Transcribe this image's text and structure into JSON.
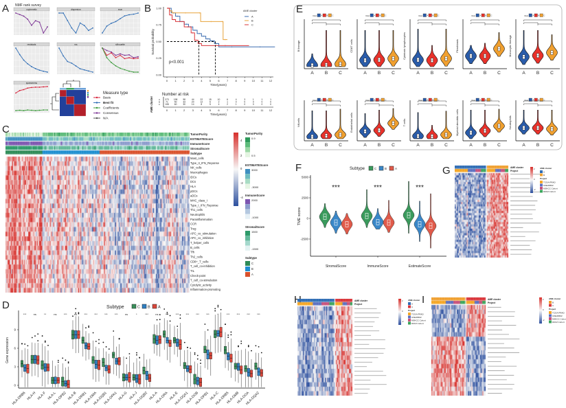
{
  "panel_labels": {
    "A": "A",
    "B": "B",
    "C": "C",
    "D": "D",
    "E": "E",
    "F": "F",
    "G": "G",
    "H": "H",
    "I": "I"
  },
  "chart_data": [
    {
      "type": "line",
      "title": "NMF rank survey",
      "x": [
        2,
        3,
        4,
        5,
        6,
        7,
        8,
        9,
        10
      ],
      "plots": [
        {
          "title": "cophenetic",
          "series": [
            {
              "color": "#7b3294",
              "values": [
                0.995,
                0.99,
                0.985,
                0.975,
                0.955,
                0.97,
                0.965,
                0.93,
                0.95
              ]
            }
          ]
        },
        {
          "title": "dispersion",
          "series": [
            {
              "color": "#2f6db5",
              "values": [
                0.9,
                0.9,
                0.75,
                0.6,
                0.5,
                0.7,
                0.65,
                0.55,
                0.6
              ]
            }
          ]
        },
        {
          "title": "evar",
          "series": [
            {
              "color": "#2f6db5",
              "values": [
                0.5,
                0.62,
                0.67,
                0.7,
                0.75,
                0.8,
                0.82,
                0.83,
                0.85
              ]
            }
          ]
        },
        {
          "title": "residuals",
          "series": [
            {
              "color": "#2f6db5",
              "values": [
                3000,
                2700,
                2450,
                2280,
                2150,
                2060,
                1990,
                1940,
                1900
              ]
            }
          ]
        },
        {
          "title": "rss",
          "series": [
            {
              "color": "#2f6db5",
              "values": [
                5000,
                4300,
                3800,
                3650,
                3400,
                3150,
                3050,
                2950,
                2850
              ]
            }
          ]
        },
        {
          "title": "silhouette",
          "series": [
            {
              "color": "#7b3294",
              "values": [
                1,
                0.95,
                0.92,
                0.85,
                0.88,
                0.85,
                0.86,
                0.8,
                0.82
              ]
            },
            {
              "color": "#d7263d",
              "values": [
                1,
                0.85,
                0.9,
                0.8,
                0.85,
                0.78,
                0.8,
                0.78,
                0.79
              ]
            },
            {
              "color": "#3a9a3a",
              "values": [
                1,
                0.8,
                0.7,
                0.63,
                0.58,
                0.55,
                0.52,
                0.5,
                0.5
              ]
            }
          ]
        },
        {
          "title": "sparseness",
          "series": [
            {
              "color": "#d7263d",
              "values": [
                0.62,
                0.7,
                0.73,
                0.78,
                0.8,
                0.81,
                0.81,
                0.82,
                0.83
              ]
            },
            {
              "color": "#3a9a3a",
              "values": [
                0.05,
                0.06,
                0.05,
                0.07,
                0.06,
                0.05,
                0.06,
                0.07,
                0.07
              ]
            }
          ]
        }
      ],
      "legend_title": "Measure type",
      "legend": [
        {
          "label": "Basis",
          "color": "#d7263d"
        },
        {
          "label": "Best fit",
          "color": "#2f6db5"
        },
        {
          "label": "Coefficients",
          "color": "#3a9a3a"
        },
        {
          "label": "Consensus",
          "color": "#7b3294"
        },
        {
          "label": "N/A",
          "color": "#555555"
        }
      ]
    },
    {
      "type": "line",
      "xlabel": "Time(years)",
      "ylabel": "Survival probability",
      "xlim": [
        0,
        12
      ],
      "ylim": [
        0,
        1
      ],
      "xticks": [
        0,
        1,
        2,
        3,
        4,
        5,
        6,
        7,
        8,
        9,
        10,
        11,
        12
      ],
      "yticks": [
        "0.00",
        "0.25",
        "0.50",
        "0.75",
        "1.00"
      ],
      "annotation": "p<0.001",
      "legend_title": "AME cluster",
      "median_times": [
        3.7,
        5.6
      ],
      "series": [
        {
          "name": "A",
          "color": "#3b6db0",
          "time": [
            0,
            0.5,
            1,
            1.5,
            2,
            2.5,
            3,
            3.5,
            4,
            4.5,
            5,
            5.5,
            6,
            9,
            12.5
          ],
          "survival": [
            1,
            0.93,
            0.88,
            0.8,
            0.76,
            0.72,
            0.67,
            0.62,
            0.58,
            0.54,
            0.51,
            0.47,
            0.42,
            0.42,
            0.42
          ]
        },
        {
          "name": "B",
          "color": "#e8a33a",
          "time": [
            0,
            0.3,
            0.6,
            3.7,
            3.9,
            6.3,
            6.5,
            7
          ],
          "survival": [
            1,
            0.96,
            0.93,
            0.93,
            0.8,
            0.8,
            0.53,
            0.53
          ]
        },
        {
          "name": "C",
          "color": "#d9353a",
          "time": [
            0,
            0.3,
            0.6,
            1,
            2,
            2.8,
            3.2,
            3.6,
            4,
            9.5
          ],
          "survival": [
            1,
            0.9,
            0.83,
            0.8,
            0.72,
            0.63,
            0.52,
            0.47,
            0.44,
            0.44
          ]
        }
      ],
      "risk_table": {
        "title": "Number at risk",
        "ylabel": "AME cluster",
        "xlabel": "Time(years)",
        "rows": [
          {
            "name": "A",
            "values": [
              373,
              198,
              98,
              44,
              22,
              15,
              10,
              6,
              4,
              3,
              1,
              1,
              1
            ]
          },
          {
            "name": "B",
            "values": [
              71,
              50,
              33,
              20,
              12,
              6,
              2,
              1,
              0,
              0,
              0,
              0,
              0
            ]
          },
          {
            "name": "C",
            "values": [
              108,
              60,
              30,
              14,
              8,
              5,
              4,
              2,
              1,
              0,
              0,
              0,
              0
            ]
          }
        ]
      }
    },
    {
      "type": "heatmap",
      "annotations": [
        "TumorPurity",
        "ESTIMATEScore",
        "ImmuneScore",
        "StromalScore",
        "Subtype"
      ],
      "rows": [
        "Mast_cells",
        "Type_II_IFN_Reponse",
        "NK_cells",
        "Macrophages",
        "iDCs",
        "DCs",
        "HLA",
        "pDCs",
        "aDCs",
        "MHC_class_I",
        "Type_I_IFN_Reponse",
        "Th1_cells",
        "Neutrophils",
        "Parainflammation",
        "CCR",
        "Treg",
        "APC_co_stimulation",
        "APC_co_inhibition",
        "T_helper_cells",
        "B_cells",
        "Tfh",
        "Th2_cells",
        "CD8+_T_cells",
        "T_cell_co-inhibition",
        "TIL",
        "Check-point",
        "T_cell_co-stimulation",
        "Cytolytic_activity",
        "Inflammation-promoting"
      ],
      "colorbar_ticks": [
        "4",
        "2",
        "0",
        "-2",
        "-4"
      ],
      "colors": {
        "low": "#2c4f9e",
        "mid": "#f7f7f7",
        "high": "#d7302c"
      },
      "legends": [
        {
          "title": "TumorPurity",
          "ticks": [
            "0.9",
            "0.5"
          ],
          "colors": [
            "#2e9a5a",
            "#5dbb7a",
            "#9dd8a6",
            "#e3f4e1"
          ]
        },
        {
          "title": "ESTIMATEScore",
          "ticks": [
            "3000",
            "-3000"
          ],
          "colors": [
            "#3f8fc0",
            "#6fbcc0",
            "#a9dcc4",
            "#e6f5e4"
          ]
        },
        {
          "title": "ImmuneScore",
          "ticks": [
            "2000",
            "-1000"
          ],
          "colors": [
            "#7d55b0",
            "#8c9ccc",
            "#b4c8e0",
            "#e6f0f6"
          ]
        },
        {
          "title": "StromalScore",
          "ticks": [
            "1500",
            "-1500"
          ],
          "colors": [
            "#2e9a6a",
            "#62b89a",
            "#a4d8cc",
            "#e3f2f2"
          ]
        }
      ],
      "subtype_title": "Subtype",
      "subtypes": [
        {
          "label": "C",
          "color": "#2e8b57"
        },
        {
          "label": "B",
          "color": "#1f8fd0"
        },
        {
          "label": "A",
          "color": "#d9512c"
        }
      ]
    },
    {
      "type": "box",
      "legend_title": "Subtype",
      "series_names": [
        "C",
        "B",
        "A"
      ],
      "colors": [
        "#3a8f5a",
        "#2f7fc1",
        "#d9473b"
      ],
      "ylabel": "Gene expression",
      "yticks": [
        0,
        3,
        6,
        9
      ],
      "ylim": [
        -0.5,
        12
      ],
      "categories": [
        "HLA-DRB6",
        "HLA-H",
        "HLA-F",
        "HLA-L",
        "HLA-DPB2",
        "HLA-B",
        "HLA-DRB1",
        "HLA-DMA",
        "HLA-DQB1",
        "HLA-DPA1",
        "HLA-G",
        "HLA-J",
        "HLA-DQB2",
        "HLA-A",
        "HLA-DRA",
        "HLA-E",
        "HLA-DQA1",
        "HLA-DOB",
        "HLA-DPB1",
        "HLA-C",
        "HLA-DRB5",
        "HLA-DMB",
        "HLA-DOA",
        "HLA-DQA2"
      ],
      "significance": [
        "***",
        "ns",
        "**",
        "ns",
        "***",
        "ns",
        "***",
        "***",
        "***",
        "***",
        "ns",
        "*",
        "***",
        "ns",
        "***",
        "***",
        "***",
        "***",
        "***",
        "*",
        "***",
        "***",
        "***",
        "***"
      ],
      "medians": [
        [
          3.5,
          2.8,
          2.7
        ],
        [
          4.2,
          4.2,
          4.1
        ],
        [
          3.3,
          2.9,
          2.9
        ],
        [
          0.8,
          0.8,
          0.8
        ],
        [
          0.6,
          0.3,
          0.2
        ],
        [
          8.2,
          8.2,
          8.2
        ],
        [
          7.3,
          6.4,
          6.3
        ],
        [
          4.1,
          3.4,
          3.3
        ],
        [
          3.7,
          2.8,
          2.6
        ],
        [
          4.9,
          3.9,
          3.9
        ],
        [
          1.3,
          1.3,
          1.3
        ],
        [
          1.3,
          1.1,
          1.0
        ],
        [
          2.4,
          1.6,
          1.2
        ],
        [
          7.5,
          7.3,
          7.4
        ],
        [
          8.3,
          7.3,
          6.8
        ],
        [
          7.3,
          6.9,
          6.6
        ],
        [
          3.2,
          2.7,
          2.6
        ],
        [
          1.0,
          0.7,
          0.5
        ],
        [
          5.8,
          5.0,
          4.8
        ],
        [
          8.3,
          8.4,
          8.6
        ],
        [
          5.7,
          4.7,
          4.4
        ],
        [
          3.1,
          3.0,
          2.5
        ],
        [
          2.7,
          2.1,
          1.9
        ],
        [
          3.1,
          2.2,
          2.0
        ]
      ]
    },
    {
      "type": "violin",
      "legend_title": "Clust",
      "groups": [
        "A",
        "B",
        "C"
      ],
      "colors": [
        "#2a5caa",
        "#e8322b",
        "#f0a030"
      ],
      "ylim": [
        0,
        10
      ],
      "panels": [
        {
          "ylabel": "B lineage",
          "medians": [
            0.3,
            0.4,
            0.6
          ],
          "max": [
            3,
            8.5,
            8.5
          ]
        },
        {
          "ylabel": "CD8T cells",
          "medians": [
            1.5,
            1.6,
            1.9
          ],
          "max": [
            8.5,
            8.5,
            8.5
          ]
        },
        {
          "ylabel": "Cytotoxic lymphocytes",
          "medians": [
            1.6,
            1.5,
            1.9
          ],
          "max": [
            8.8,
            5,
            8.8
          ]
        },
        {
          "ylabel": "Fibroblasts",
          "medians": [
            2.5,
            2.5,
            4.2
          ],
          "max": [
            5,
            5.5,
            8
          ]
        },
        {
          "ylabel": "Monocytic lineage",
          "medians": [
            2.3,
            2.6,
            3.3
          ],
          "max": [
            8.5,
            8.5,
            7.5
          ]
        },
        {
          "ylabel": "NKcells",
          "medians": [
            0.6,
            0.9,
            1.2
          ],
          "max": [
            8.3,
            8.3,
            8.8
          ]
        },
        {
          "ylabel": "Endothelial cells",
          "medians": [
            2.2,
            2.5,
            4.6
          ],
          "max": [
            7.5,
            8.5,
            9
          ]
        },
        {
          "ylabel": "T cells",
          "medians": [
            0.8,
            0.7,
            1.2
          ],
          "max": [
            7.8,
            4,
            8.2
          ]
        },
        {
          "ylabel": "Myeloid dendritic cells",
          "medians": [
            1.8,
            2.4,
            3.8
          ],
          "max": [
            8.5,
            8.5,
            8.8
          ]
        },
        {
          "ylabel": "Neutrophils",
          "medians": [
            3.2,
            3.2,
            2.9
          ],
          "max": [
            8.5,
            8.5,
            8.5
          ]
        }
      ]
    },
    {
      "type": "violin",
      "legend_title": "Subtype",
      "series_names": [
        "C",
        "B",
        "A"
      ],
      "colors": [
        "#3a9a5c",
        "#3a87c8",
        "#e05a4a"
      ],
      "ylabel": "TME score",
      "yticks": [
        5000,
        2500,
        0,
        -2500
      ],
      "categories": [
        "StromalScore",
        "ImmuneScore",
        "EstimateScore"
      ],
      "significance": [
        "***",
        "***",
        "***"
      ],
      "medians": [
        [
          200,
          -500,
          -700
        ],
        [
          300,
          -450,
          -500
        ],
        [
          400,
          -700,
          -900
        ]
      ],
      "min": [
        [
          -1100,
          -1800,
          -1900
        ],
        [
          -1100,
          -1300,
          -1700
        ],
        [
          -1800,
          -2800,
          -3600
        ]
      ],
      "max": [
        [
          1800,
          900,
          600
        ],
        [
          3500,
          1200,
          2200
        ],
        [
          4500,
          2100,
          3000
        ]
      ]
    },
    {
      "type": "heatmap",
      "annotation_labels": [
        "AME cluster",
        "Project"
      ],
      "colorbar_ticks": [
        "2",
        "0",
        "-2"
      ],
      "cluster_title": "AME cluster",
      "clusters": [
        {
          "label": "A",
          "color": "#2f6db5"
        },
        {
          "label": "B",
          "color": "#f0a030"
        }
      ],
      "project_title": "Project",
      "projects": [
        {
          "label": "TCGA-PRAD",
          "color": "#f5a623"
        },
        {
          "label": "GSE46602",
          "color": "#5b6fc0"
        },
        {
          "label": "MSKCC Cohort",
          "color": "#c8507a"
        },
        {
          "label": "DKFZ Cohort",
          "color": "#3aa55a"
        }
      ]
    },
    {
      "type": "heatmap",
      "annotation_labels": [
        "AME cluster",
        "Project"
      ],
      "colorbar_ticks": [
        "2",
        "0",
        "-2"
      ],
      "cluster_title": "AME cluster",
      "clusters": [
        {
          "label": "A",
          "color": "#2f6db5"
        },
        {
          "label": "C",
          "color": "#d9353a"
        }
      ],
      "project_title": "Project",
      "projects": [
        {
          "label": "TCGA-PRAD",
          "color": "#f5a623"
        },
        {
          "label": "GSE46602",
          "color": "#5b6fc0"
        },
        {
          "label": "MSKCC Cohort",
          "color": "#c8507a"
        },
        {
          "label": "DKFZ Cohort",
          "color": "#3aa55a"
        }
      ]
    },
    {
      "type": "heatmap",
      "annotation_labels": [
        "AME cluster",
        "Project"
      ],
      "colorbar_ticks": [
        "2",
        "0",
        "-2"
      ],
      "cluster_title": "AME cluster",
      "clusters": [
        {
          "label": "B",
          "color": "#f0a030"
        },
        {
          "label": "C",
          "color": "#d9353a"
        }
      ],
      "project_title": "Project",
      "projects": [
        {
          "label": "TCGA-PRAD",
          "color": "#f5a623"
        },
        {
          "label": "GSE46602",
          "color": "#5b6fc0"
        },
        {
          "label": "MSKCC Cohort",
          "color": "#c8507a"
        },
        {
          "label": "DKFZ Cohort",
          "color": "#3aa55a"
        }
      ]
    }
  ]
}
